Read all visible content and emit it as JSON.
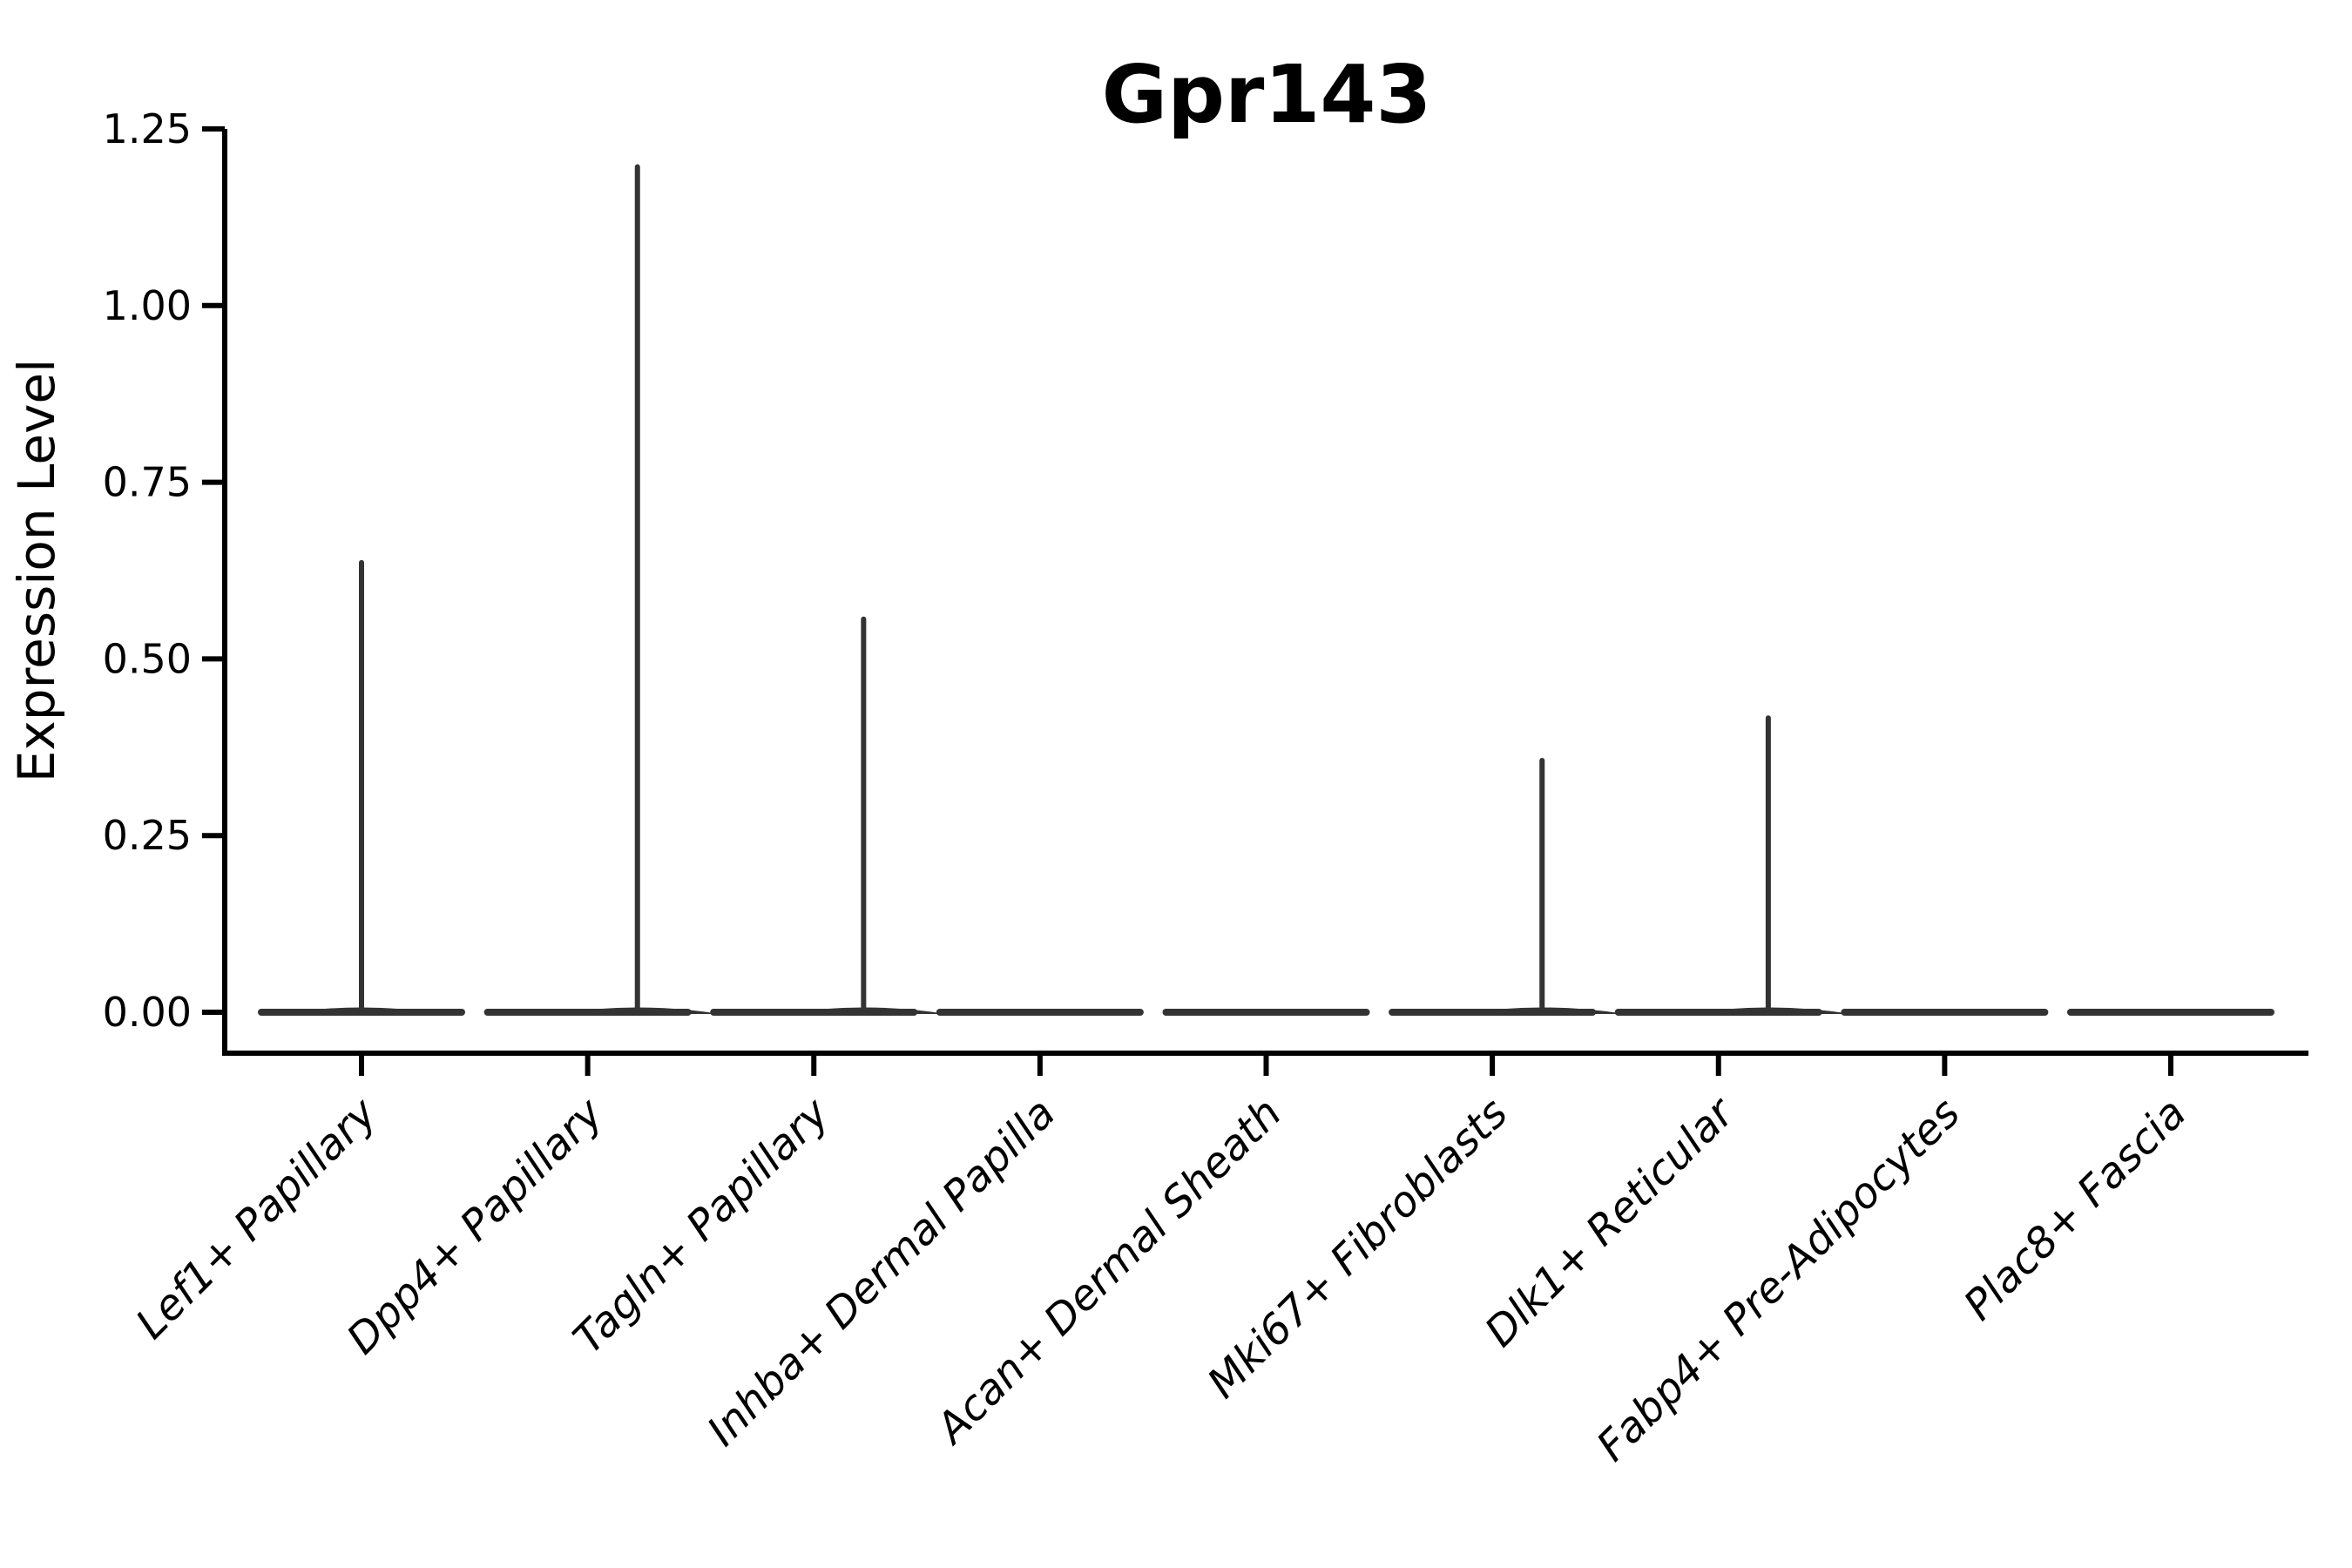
{
  "chart_data": {
    "type": "violin",
    "title": "Gpr143",
    "xlabel": "",
    "ylabel": "Expression Level",
    "ylim": [
      0,
      1.25
    ],
    "yticks": [
      0.0,
      0.25,
      0.5,
      0.75,
      1.0,
      1.25
    ],
    "ytick_labels": [
      "0.00",
      "0.25",
      "0.50",
      "0.75",
      "1.00",
      "1.25"
    ],
    "grid": false,
    "legend": "none",
    "categories": [
      "Lef1+ Papillary",
      "Dpp4+ Papillary",
      "Tagln+ Papillary",
      "Inhba+ Dermal Papilla",
      "Acan+ Dermal Sheath",
      "Mki67+ Fibroblasts",
      "Dlk1+ Reticular",
      "Fabp4+ Pre-Adipocytes",
      "Plac8+ Fascia"
    ],
    "violins": [
      {
        "category": "Lef1+ Papillary",
        "max_expression": 0.64,
        "bulk_at": 0.0,
        "peak_offset_frac": 0.0
      },
      {
        "category": "Dpp4+ Papillary",
        "max_expression": 1.2,
        "bulk_at": 0.0,
        "peak_offset_frac": 0.22
      },
      {
        "category": "Tagln+ Papillary",
        "max_expression": 0.56,
        "bulk_at": 0.0,
        "peak_offset_frac": 0.22
      },
      {
        "category": "Inhba+ Dermal Papilla",
        "max_expression": 0.0,
        "bulk_at": 0.0,
        "peak_offset_frac": 0.0
      },
      {
        "category": "Acan+ Dermal Sheath",
        "max_expression": 0.0,
        "bulk_at": 0.0,
        "peak_offset_frac": 0.0
      },
      {
        "category": "Mki67+ Fibroblasts",
        "max_expression": 0.36,
        "bulk_at": 0.0,
        "peak_offset_frac": 0.22
      },
      {
        "category": "Dlk1+ Reticular",
        "max_expression": 0.42,
        "bulk_at": 0.0,
        "peak_offset_frac": 0.22
      },
      {
        "category": "Fabp4+ Pre-Adipocytes",
        "max_expression": 0.0,
        "bulk_at": 0.0,
        "peak_offset_frac": 0.0
      },
      {
        "category": "Plac8+ Fascia",
        "max_expression": 0.0,
        "bulk_at": 0.0,
        "peak_offset_frac": 0.0
      }
    ],
    "colors": {
      "violin": "#333333",
      "axis": "#000000",
      "text": "#000000",
      "background": "#ffffff"
    }
  }
}
